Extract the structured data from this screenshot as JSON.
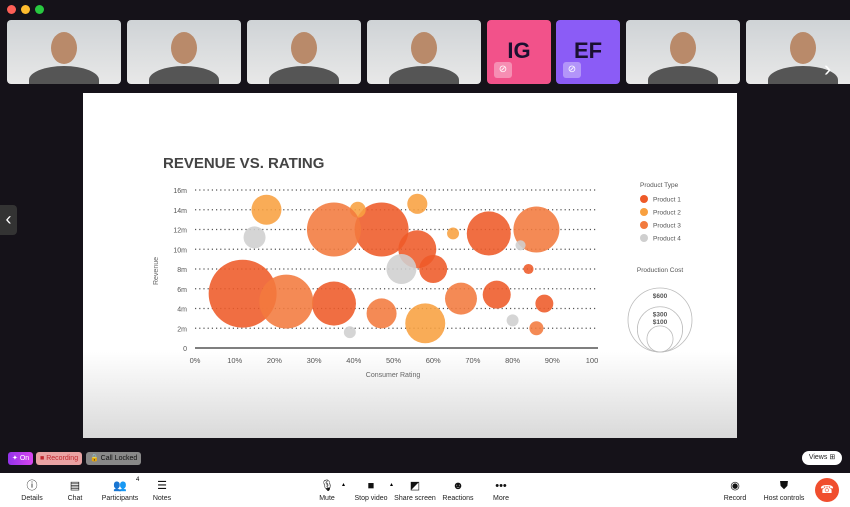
{
  "window": {
    "controls": [
      "close",
      "minimize",
      "maximize"
    ],
    "colors": [
      "#fe5f57",
      "#febc2e",
      "#28c840"
    ]
  },
  "participants": [
    {
      "type": "video"
    },
    {
      "type": "video"
    },
    {
      "type": "video"
    },
    {
      "type": "video"
    },
    {
      "type": "avatar",
      "initials": "IG",
      "color": "#f2528a",
      "camera": "off"
    },
    {
      "type": "avatar",
      "initials": "EF",
      "color": "#8b5cf6",
      "camera": "off"
    },
    {
      "type": "video"
    },
    {
      "type": "video"
    }
  ],
  "status": {
    "ai": "On",
    "recording": "Recording",
    "locked": "Call Locked",
    "views": "Views"
  },
  "toolbar": {
    "details": "Details",
    "chat": "Chat",
    "participants": "Participants",
    "participants_count": "4",
    "notes": "Notes",
    "mute": "Mute",
    "stop_video": "Stop video",
    "share_screen": "Share screen",
    "reactions": "Reactions",
    "more": "More",
    "record": "Record",
    "host_controls": "Host controls",
    "end_call_color": "#f04e2e"
  },
  "chart_data": {
    "type": "scatter",
    "title": "REVENUE VS. RATING",
    "xlabel": "Consumer Rating",
    "ylabel": "Revenue",
    "xlim": [
      0,
      100
    ],
    "ylim": [
      0,
      16
    ],
    "xticks": [
      "0%",
      "10%",
      "20%",
      "30%",
      "40%",
      "50%",
      "60%",
      "70%",
      "80%",
      "90%",
      "100"
    ],
    "yticks": [
      "0",
      "2m",
      "4m",
      "6m",
      "8m",
      "10m",
      "12m",
      "14m",
      "16m"
    ],
    "grid": "horizontal dotted",
    "legend_title": "Product Type",
    "series": [
      {
        "name": "Product 1",
        "color": "#ee5a28",
        "points": [
          [
            12,
            5.5,
            677
          ],
          [
            47,
            12,
            427
          ],
          [
            56,
            10,
            211
          ],
          [
            60,
            8,
            115
          ],
          [
            74,
            11.6,
            284
          ],
          [
            76,
            5.4,
            115
          ],
          [
            84,
            8,
            15
          ],
          [
            88,
            4.5,
            47
          ],
          [
            35,
            4.5,
            284
          ]
        ]
      },
      {
        "name": "Product 2",
        "color": "#f8a040",
        "points": [
          [
            18,
            14,
            132
          ],
          [
            41,
            14,
            37
          ],
          [
            56,
            14.6,
            59
          ],
          [
            65,
            11.6,
            21
          ],
          [
            58,
            2.5,
            234
          ]
        ]
      },
      {
        "name": "Product 3",
        "color": "#f27a3e",
        "points": [
          [
            23,
            4.7,
            427
          ],
          [
            35,
            12,
            427
          ],
          [
            67,
            5,
            150
          ],
          [
            86,
            12,
            310
          ],
          [
            86,
            2,
            29
          ],
          [
            47,
            3.5,
            132
          ]
        ]
      },
      {
        "name": "Product 4",
        "color": "#cfcfcf",
        "points": [
          [
            15,
            11.2,
            71
          ],
          [
            52,
            8,
            132
          ],
          [
            82,
            10.4,
            15
          ],
          [
            80,
            2.8,
            21
          ],
          [
            39,
            1.6,
            21
          ]
        ]
      }
    ],
    "size_legend_title": "Production Cost",
    "size_legend": [
      "$600",
      "$300",
      "$100"
    ],
    "size_values": [
      600,
      300,
      100
    ]
  }
}
